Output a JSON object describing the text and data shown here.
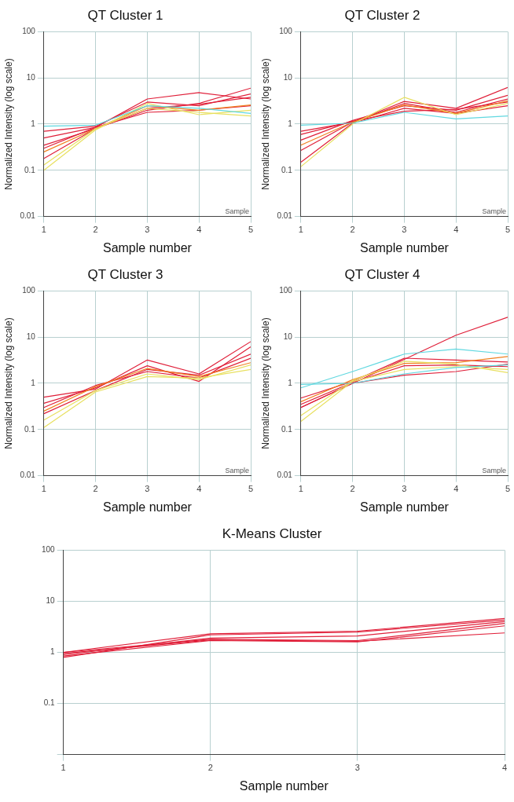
{
  "chart_data": [
    {
      "type": "line",
      "title": "QT Cluster 1",
      "xlabel": "Sample number",
      "ylabel": "Normalized Intensity (log scale)",
      "log": "y",
      "xlim": [
        1,
        5
      ],
      "xticks": [
        1,
        2,
        3,
        4,
        5
      ],
      "ylim": [
        0.01,
        100
      ],
      "yticks": [
        0.01,
        0.1,
        1,
        10,
        100
      ],
      "grid": true,
      "legend": false,
      "marker": "none",
      "annotations": [
        "Sample"
      ],
      "series": [
        {
          "color": "#e0203a",
          "x": [
            1,
            2,
            3,
            4,
            5
          ],
          "values": [
            0.5,
            0.85,
            3.5,
            4.8,
            3.5
          ]
        },
        {
          "color": "#e0203a",
          "x": [
            1,
            2,
            3,
            4,
            5
          ],
          "values": [
            0.35,
            0.8,
            2,
            2.8,
            6
          ]
        },
        {
          "color": "#e0203a",
          "x": [
            1,
            2,
            3,
            4,
            5
          ],
          "values": [
            0.7,
            0.9,
            3,
            2.5,
            4.5
          ]
        },
        {
          "color": "#e0203a",
          "x": [
            1,
            2,
            3,
            4,
            5
          ],
          "values": [
            0.3,
            0.85,
            1.8,
            2,
            2.5
          ]
        },
        {
          "color": "#e0203a",
          "x": [
            1,
            2,
            3,
            4,
            5
          ],
          "values": [
            0.18,
            0.8,
            2.2,
            2.7,
            3.8
          ]
        },
        {
          "color": "#f08020",
          "x": [
            1,
            2,
            3,
            4,
            5
          ],
          "values": [
            0.25,
            0.8,
            2.5,
            2,
            2.6
          ]
        },
        {
          "color": "#e8e060",
          "x": [
            1,
            2,
            3,
            4,
            5
          ],
          "values": [
            0.1,
            0.75,
            2.8,
            1.6,
            2
          ]
        },
        {
          "color": "#e8e060",
          "x": [
            1,
            2,
            3,
            4,
            5
          ],
          "values": [
            0.13,
            0.8,
            2.2,
            1.8,
            1.5
          ]
        },
        {
          "color": "#60d8e0",
          "x": [
            1,
            2,
            3,
            4,
            5
          ],
          "values": [
            0.9,
            0.95,
            2.5,
            2.2,
            1.7
          ]
        }
      ]
    },
    {
      "type": "line",
      "title": "QT Cluster 2",
      "xlabel": "Sample number",
      "ylabel": "Normalized Intensity (log scale)",
      "log": "y",
      "xlim": [
        1,
        5
      ],
      "xticks": [
        1,
        2,
        3,
        4,
        5
      ],
      "ylim": [
        0.01,
        100
      ],
      "yticks": [
        0.01,
        0.1,
        1,
        10,
        100
      ],
      "grid": true,
      "legend": false,
      "marker": "none",
      "annotations": [
        "Sample"
      ],
      "series": [
        {
          "color": "#e0203a",
          "x": [
            1,
            2,
            3,
            4,
            5
          ],
          "values": [
            0.7,
            1.1,
            3.1,
            2.2,
            6.2
          ]
        },
        {
          "color": "#e0203a",
          "x": [
            1,
            2,
            3,
            4,
            5
          ],
          "values": [
            0.27,
            1.1,
            2.8,
            1.8,
            3.5
          ]
        },
        {
          "color": "#e0203a",
          "x": [
            1,
            2,
            3,
            4,
            5
          ],
          "values": [
            0.45,
            1.2,
            2.5,
            2,
            4.2
          ]
        },
        {
          "color": "#e0203a",
          "x": [
            1,
            2,
            3,
            4,
            5
          ],
          "values": [
            0.15,
            1.05,
            2.2,
            1.7,
            2.5
          ]
        },
        {
          "color": "#e0203a",
          "x": [
            1,
            2,
            3,
            4,
            5
          ],
          "values": [
            0.6,
            1.15,
            1.9,
            2.1,
            3
          ]
        },
        {
          "color": "#f08020",
          "x": [
            1,
            2,
            3,
            4,
            5
          ],
          "values": [
            0.35,
            1.1,
            2.6,
            1.7,
            3.2
          ]
        },
        {
          "color": "#e8e060",
          "x": [
            1,
            2,
            3,
            4,
            5
          ],
          "values": [
            0.12,
            1,
            3.8,
            1.6,
            2.8
          ]
        },
        {
          "color": "#60d8e0",
          "x": [
            1,
            2,
            3,
            4,
            5
          ],
          "values": [
            0.95,
            1.05,
            1.8,
            1.3,
            1.5
          ]
        }
      ]
    },
    {
      "type": "line",
      "title": "QT Cluster 3",
      "xlabel": "Sample number",
      "ylabel": "Normalized Intensity (log scale)",
      "log": "y",
      "xlim": [
        1,
        5
      ],
      "xticks": [
        1,
        2,
        3,
        4,
        5
      ],
      "ylim": [
        0.01,
        100
      ],
      "yticks": [
        0.01,
        0.1,
        1,
        10,
        100
      ],
      "grid": true,
      "legend": false,
      "marker": "none",
      "annotations": [
        "Sample"
      ],
      "series": [
        {
          "color": "#e0203a",
          "x": [
            1,
            2,
            3,
            4,
            5
          ],
          "values": [
            0.5,
            0.75,
            3.2,
            1.6,
            8
          ]
        },
        {
          "color": "#e0203a",
          "x": [
            1,
            2,
            3,
            4,
            5
          ],
          "values": [
            0.37,
            0.8,
            2.4,
            1.1,
            6.2
          ]
        },
        {
          "color": "#e0203a",
          "x": [
            1,
            2,
            3,
            4,
            5
          ],
          "values": [
            0.22,
            0.7,
            2,
            1.5,
            4.3
          ]
        },
        {
          "color": "#e0203a",
          "x": [
            1,
            2,
            3,
            4,
            5
          ],
          "values": [
            0.3,
            0.9,
            1.8,
            1.3,
            3.5
          ]
        },
        {
          "color": "#f08020",
          "x": [
            1,
            2,
            3,
            4,
            5
          ],
          "values": [
            0.25,
            0.85,
            2.1,
            1.4,
            2.8
          ]
        },
        {
          "color": "#e8e060",
          "x": [
            1,
            2,
            3,
            4,
            5
          ],
          "values": [
            0.16,
            0.7,
            1.6,
            1.2,
            2.5
          ]
        },
        {
          "color": "#e8e060",
          "x": [
            1,
            2,
            3,
            4,
            5
          ],
          "values": [
            0.11,
            0.65,
            1.4,
            1.3,
            2
          ]
        }
      ]
    },
    {
      "type": "line",
      "title": "QT Cluster 4",
      "xlabel": "Sample number",
      "ylabel": "Normalized Intensity (log scale)",
      "log": "y",
      "xlim": [
        1,
        5
      ],
      "xticks": [
        1,
        2,
        3,
        4,
        5
      ],
      "ylim": [
        0.01,
        100
      ],
      "yticks": [
        0.01,
        0.1,
        1,
        10,
        100
      ],
      "grid": true,
      "legend": false,
      "marker": "none",
      "annotations": [
        "Sample"
      ],
      "series": [
        {
          "color": "#e0203a",
          "x": [
            1,
            2,
            3,
            4,
            5
          ],
          "values": [
            0.3,
            1,
            3.3,
            11,
            27
          ]
        },
        {
          "color": "#e0203a",
          "x": [
            1,
            2,
            3,
            4,
            5
          ],
          "values": [
            0.48,
            1.1,
            3.5,
            3.2,
            2.9
          ]
        },
        {
          "color": "#e0203a",
          "x": [
            1,
            2,
            3,
            4,
            5
          ],
          "values": [
            0.35,
            1.05,
            2.4,
            2.5,
            2.3
          ]
        },
        {
          "color": "#e0203a",
          "x": [
            1,
            2,
            3,
            4,
            5
          ],
          "values": [
            0.3,
            1,
            1.5,
            1.8,
            2.6
          ]
        },
        {
          "color": "#f08020",
          "x": [
            1,
            2,
            3,
            4,
            5
          ],
          "values": [
            0.4,
            1.2,
            2.7,
            2.8,
            3.8
          ]
        },
        {
          "color": "#e8e060",
          "x": [
            1,
            2,
            3,
            4,
            5
          ],
          "values": [
            0.15,
            1.1,
            2,
            2.3,
            2
          ]
        },
        {
          "color": "#e8e060",
          "x": [
            1,
            2,
            3,
            4,
            5
          ],
          "values": [
            0.2,
            1.15,
            3,
            2.6,
            1.7
          ]
        },
        {
          "color": "#60d8e0",
          "x": [
            1,
            2,
            3,
            4,
            5
          ],
          "values": [
            0.8,
            1.8,
            4.3,
            5.5,
            4.3
          ]
        },
        {
          "color": "#60d8e0",
          "x": [
            1,
            2,
            3,
            4,
            5
          ],
          "values": [
            0.95,
            1,
            1.6,
            2.2,
            2.5
          ]
        }
      ]
    },
    {
      "type": "line",
      "title": "K-Means Cluster",
      "xlabel": "Sample number",
      "log": "y",
      "xlim": [
        1,
        4
      ],
      "xticks": [
        1,
        2,
        3,
        4
      ],
      "ylim": [
        0.01,
        100
      ],
      "yticks": [
        {
          "value": 0.01,
          "label": null
        },
        0.1,
        1,
        10,
        100
      ],
      "grid": true,
      "legend": false,
      "marker": "none",
      "series": [
        {
          "color": "#e0203a",
          "x": [
            1,
            2,
            3,
            4
          ],
          "values": [
            1,
            2.3,
            2.6,
            4.6
          ]
        },
        {
          "color": "#e0203a",
          "x": [
            1,
            2,
            3,
            4
          ],
          "values": [
            0.8,
            2.2,
            2.5,
            4.3
          ]
        },
        {
          "color": "#e0203a",
          "x": [
            1,
            2,
            3,
            4
          ],
          "values": [
            0.9,
            1.9,
            2.1,
            4
          ]
        },
        {
          "color": "#e0203a",
          "x": [
            1,
            2,
            3,
            4
          ],
          "values": [
            1,
            1.8,
            1.7,
            3.7
          ]
        },
        {
          "color": "#e0203a",
          "x": [
            1,
            2,
            3,
            4
          ],
          "values": [
            0.85,
            1.7,
            1.6,
            3.3
          ]
        },
        {
          "color": "#e0203a",
          "x": [
            1,
            2,
            3,
            4
          ],
          "values": [
            0.95,
            1.75,
            1.65,
            2.4
          ]
        }
      ]
    }
  ]
}
